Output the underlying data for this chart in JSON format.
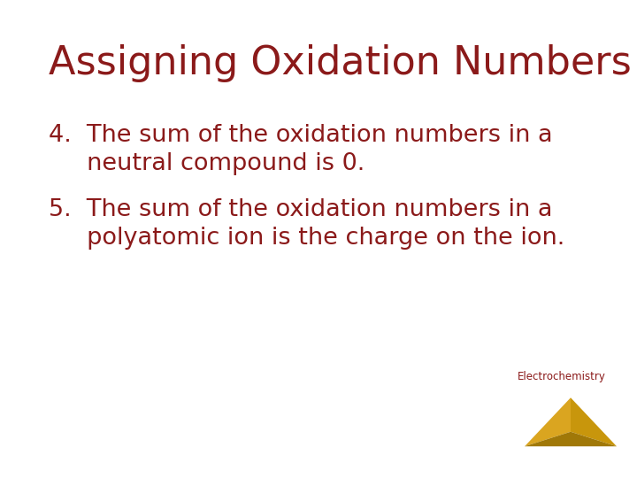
{
  "title": "Assigning Oxidation Numbers",
  "title_color": "#8B1A1A",
  "title_fontsize": 32,
  "background_color": "#FFFFFF",
  "text_color": "#8B1A1A",
  "body_fontsize": 19.5,
  "item4_line1": "4.  The sum of the oxidation numbers in a",
  "item4_line2": "     neutral compound is 0.",
  "item5_line1": "5.  The sum of the oxidation numbers in a",
  "item5_line2": "     polyatomic ion is the charge on the ion.",
  "electrochemistry_label": "Electrochemistry",
  "triangle_gold_light": "#DAA520",
  "triangle_gold_mid": "#C8960C",
  "triangle_gold_dark": "#A07808"
}
